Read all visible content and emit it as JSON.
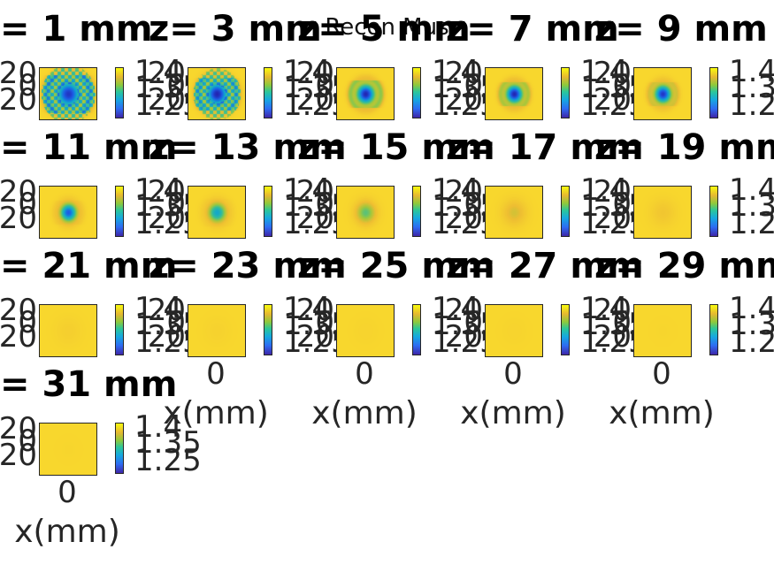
{
  "chart_data": {
    "type": "heatmap",
    "title": "Recon Mus",
    "xlabel": "x(mm)",
    "colorbar_ticks": [
      "1.4",
      "1.35",
      "1.25"
    ],
    "y_ticks": [
      "20",
      "0",
      "20"
    ],
    "x_ticks": [
      "0"
    ],
    "panels": [
      {
        "title": "= 1 mm",
        "dev": 0.9,
        "ring": 0.8,
        "width": 0.34,
        "center": [
          0.5,
          0.5
        ]
      },
      {
        "title": "z= 3 mm",
        "dev": 0.95,
        "ring": 0.75,
        "width": 0.3,
        "center": [
          0.5,
          0.5
        ]
      },
      {
        "title": "z= 5 mm",
        "dev": 0.95,
        "ring": 0.55,
        "width": 0.24,
        "center": [
          0.5,
          0.5
        ]
      },
      {
        "title": "z= 7 mm",
        "dev": 0.95,
        "ring": 0.45,
        "width": 0.22,
        "center": [
          0.5,
          0.5
        ]
      },
      {
        "title": "z= 9 mm",
        "dev": 0.9,
        "ring": 0.3,
        "width": 0.22,
        "center": [
          0.5,
          0.5
        ]
      },
      {
        "title": "= 11 mm",
        "dev": 0.8,
        "ring": 0.1,
        "width": 0.22,
        "center": [
          0.5,
          0.5
        ]
      },
      {
        "title": "z= 13 mm",
        "dev": 0.6,
        "ring": 0.05,
        "width": 0.24,
        "center": [
          0.5,
          0.5
        ]
      },
      {
        "title": "z= 15 mm",
        "dev": 0.4,
        "ring": 0.0,
        "width": 0.26,
        "center": [
          0.5,
          0.5
        ]
      },
      {
        "title": "z= 17 mm",
        "dev": 0.2,
        "ring": 0.0,
        "width": 0.3,
        "center": [
          0.5,
          0.5
        ]
      },
      {
        "title": "z= 19 mm",
        "dev": 0.1,
        "ring": 0.0,
        "width": 0.32,
        "center": [
          0.5,
          0.5
        ]
      },
      {
        "title": "= 21 mm",
        "dev": 0.05,
        "ring": 0.0,
        "width": 0.34,
        "center": [
          0.5,
          0.5
        ]
      },
      {
        "title": "z= 23 mm",
        "dev": 0.03,
        "ring": 0.0,
        "width": 0.34,
        "center": [
          0.5,
          0.5
        ]
      },
      {
        "title": "z= 25 mm",
        "dev": 0.02,
        "ring": 0.0,
        "width": 0.34,
        "center": [
          0.5,
          0.5
        ]
      },
      {
        "title": "z= 27 mm",
        "dev": 0.02,
        "ring": 0.0,
        "width": 0.34,
        "center": [
          0.5,
          0.5
        ]
      },
      {
        "title": "z= 29 mm",
        "dev": 0.01,
        "ring": 0.0,
        "width": 0.34,
        "center": [
          0.5,
          0.5
        ]
      },
      {
        "title": "= 31 mm",
        "dev": 0.01,
        "ring": 0.0,
        "width": 0.34,
        "center": [
          0.5,
          0.5
        ]
      }
    ]
  }
}
